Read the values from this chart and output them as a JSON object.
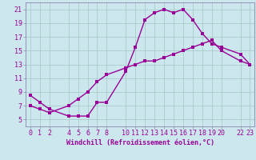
{
  "xlabel": "Windchill (Refroidissement éolien,°C)",
  "line_color": "#990099",
  "bg_color": "#cce8ee",
  "grid_color": "#aacccc",
  "spine_color": "#8888aa",
  "line1_x": [
    0,
    1,
    2,
    4,
    5,
    6,
    7,
    8,
    10,
    11,
    12,
    13,
    14,
    15,
    16,
    17,
    18,
    19,
    20,
    22,
    23
  ],
  "line1_y": [
    8.5,
    7.5,
    6.5,
    5.5,
    5.5,
    5.5,
    7.5,
    7.5,
    12.0,
    15.5,
    19.5,
    20.5,
    21.0,
    20.5,
    21.0,
    19.5,
    17.5,
    16.0,
    15.5,
    14.5,
    13.0
  ],
  "line2_x": [
    0,
    1,
    2,
    4,
    5,
    6,
    7,
    8,
    10,
    11,
    12,
    13,
    14,
    15,
    16,
    17,
    18,
    19,
    20,
    22,
    23
  ],
  "line2_y": [
    7.0,
    6.5,
    6.0,
    7.0,
    8.0,
    9.0,
    10.5,
    11.5,
    12.5,
    13.0,
    13.5,
    13.5,
    14.0,
    14.5,
    15.0,
    15.5,
    16.0,
    16.5,
    15.0,
    13.5,
    13.0
  ],
  "ylim": [
    4.0,
    22.0
  ],
  "xlim": [
    -0.5,
    23.5
  ],
  "yticks": [
    5,
    7,
    9,
    11,
    13,
    15,
    17,
    19,
    21
  ],
  "xticks": [
    0,
    1,
    2,
    4,
    5,
    6,
    7,
    8,
    10,
    11,
    12,
    13,
    14,
    15,
    16,
    17,
    18,
    19,
    20,
    22,
    23
  ],
  "tick_fontsize": 6,
  "label_fontsize": 6,
  "marker_size": 2.5,
  "linewidth": 1.0
}
